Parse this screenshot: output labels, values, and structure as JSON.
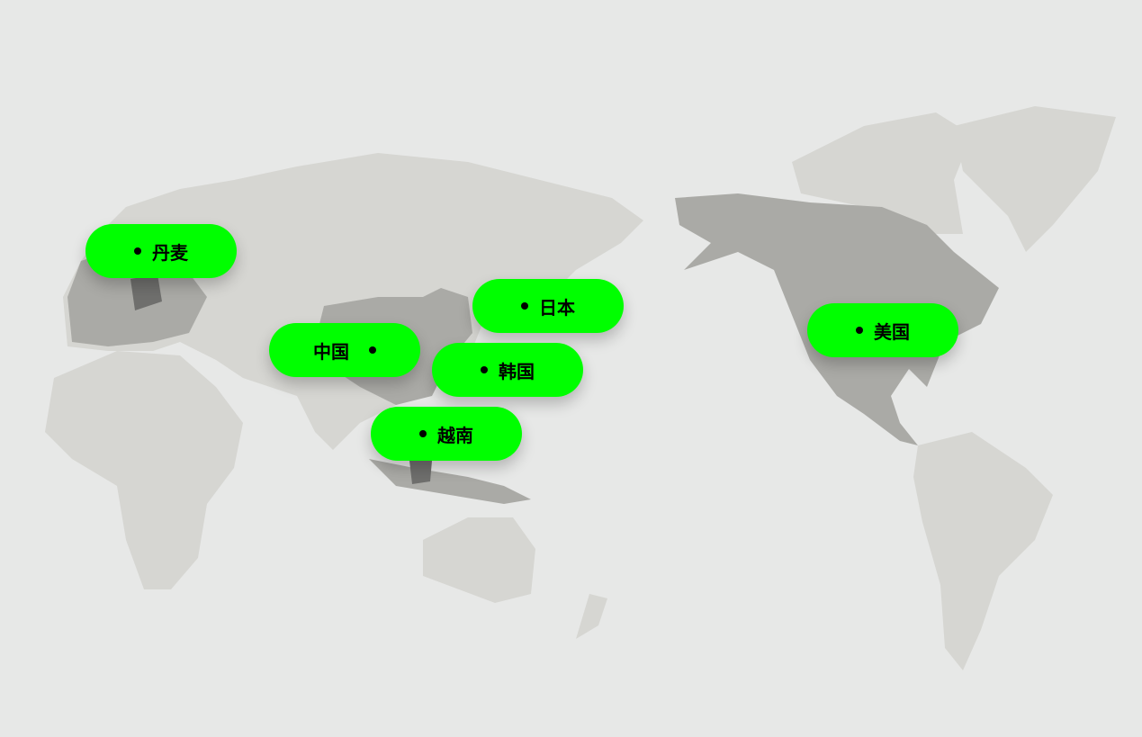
{
  "colors": {
    "background": "#e7e8e7",
    "land": "#d6d6d2",
    "highlight_land": "#aaaaa6",
    "dark_highlight": "#6f6f6d",
    "pill": "#00ff00",
    "text": "#000000"
  },
  "markers": [
    {
      "label": "丹麦",
      "icon": "dot-icon",
      "dot_position": "before"
    },
    {
      "label": "日本",
      "icon": "dot-icon",
      "dot_position": "before"
    },
    {
      "label": "中国",
      "icon": "dot-icon",
      "dot_position": "after"
    },
    {
      "label": "韩国",
      "icon": "dot-icon",
      "dot_position": "before"
    },
    {
      "label": "越南",
      "icon": "dot-icon",
      "dot_position": "before"
    },
    {
      "label": "美国",
      "icon": "dot-icon",
      "dot_position": "before"
    }
  ]
}
